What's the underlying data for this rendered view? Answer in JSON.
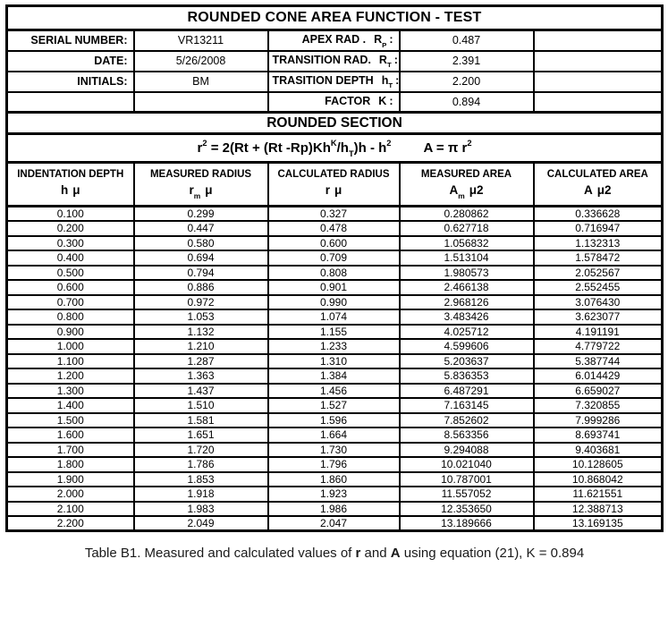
{
  "title": "ROUNDED CONE AREA FUNCTION - TEST",
  "info_left": [
    {
      "label": "SERIAL NUMBER:",
      "value": "VR13211"
    },
    {
      "label": "DATE:",
      "value": "5/26/2008"
    },
    {
      "label": "INITIALS:",
      "value": "BM"
    },
    {
      "label": "",
      "value": ""
    }
  ],
  "info_right": [
    {
      "label_main": "APEX RAD .",
      "symbol": "R",
      "symbol_sub": "P",
      "colon": ":",
      "value": "0.487"
    },
    {
      "label_main": "TRANSITION RAD.",
      "symbol": "R",
      "symbol_sub": "T",
      "colon": ":",
      "value": "2.391"
    },
    {
      "label_main": "TRASITION DEPTH",
      "symbol": "h",
      "symbol_sub": "T",
      "colon": ":",
      "value": "2.200"
    },
    {
      "label_main": "FACTOR",
      "symbol": "K",
      "symbol_sub": "",
      "colon": ":",
      "value": "0.894"
    }
  ],
  "section_title": "ROUNDED SECTION",
  "formula": {
    "r": "r",
    "r_sup": "2",
    "mid": " = 2(Rt + (Rt -Rp)Kh",
    "k_sup": "K",
    "over_h": "/h",
    "t_sub": "T",
    "tail": ")h - h",
    "h_sup": "2",
    "area": "A = π r",
    "area_sup": "2"
  },
  "columns": [
    {
      "line1": "INDENTATION DEPTH",
      "sym": "h",
      "sub": "",
      "unit": "μ"
    },
    {
      "line1": "MEASURED RADIUS",
      "sym": "r",
      "sub": "m",
      "unit": "μ"
    },
    {
      "line1": "CALCULATED RADIUS",
      "sym": "r",
      "sub": "",
      "unit": "μ"
    },
    {
      "line1": "MEASURED AREA",
      "sym": "A",
      "sub": "m",
      "unit": "μ2"
    },
    {
      "line1": "CALCULATED AREA",
      "sym": "A",
      "sub": "",
      "unit": "μ2"
    }
  ],
  "chart_data": {
    "type": "table",
    "title": "ROUNDED CONE AREA FUNCTION - TEST",
    "columns": [
      "INDENTATION DEPTH h μ",
      "MEASURED RADIUS rm μ",
      "CALCULATED RADIUS r μ",
      "MEASURED AREA Am μ2",
      "CALCULATED AREA A μ2"
    ],
    "rows": [
      [
        "0.100",
        "0.299",
        "0.327",
        "0.280862",
        "0.336628"
      ],
      [
        "0.200",
        "0.447",
        "0.478",
        "0.627718",
        "0.716947"
      ],
      [
        "0.300",
        "0.580",
        "0.600",
        "1.056832",
        "1.132313"
      ],
      [
        "0.400",
        "0.694",
        "0.709",
        "1.513104",
        "1.578472"
      ],
      [
        "0.500",
        "0.794",
        "0.808",
        "1.980573",
        "2.052567"
      ],
      [
        "0.600",
        "0.886",
        "0.901",
        "2.466138",
        "2.552455"
      ],
      [
        "0.700",
        "0.972",
        "0.990",
        "2.968126",
        "3.076430"
      ],
      [
        "0.800",
        "1.053",
        "1.074",
        "3.483426",
        "3.623077"
      ],
      [
        "0.900",
        "1.132",
        "1.155",
        "4.025712",
        "4.191191"
      ],
      [
        "1.000",
        "1.210",
        "1.233",
        "4.599606",
        "4.779722"
      ],
      [
        "1.100",
        "1.287",
        "1.310",
        "5.203637",
        "5.387744"
      ],
      [
        "1.200",
        "1.363",
        "1.384",
        "5.836353",
        "6.014429"
      ],
      [
        "1.300",
        "1.437",
        "1.456",
        "6.487291",
        "6.659027"
      ],
      [
        "1.400",
        "1.510",
        "1.527",
        "7.163145",
        "7.320855"
      ],
      [
        "1.500",
        "1.581",
        "1.596",
        "7.852602",
        "7.999286"
      ],
      [
        "1.600",
        "1.651",
        "1.664",
        "8.563356",
        "8.693741"
      ],
      [
        "1.700",
        "1.720",
        "1.730",
        "9.294088",
        "9.403681"
      ],
      [
        "1.800",
        "1.786",
        "1.796",
        "10.021040",
        "10.128605"
      ],
      [
        "1.900",
        "1.853",
        "1.860",
        "10.787001",
        "10.868042"
      ],
      [
        "2.000",
        "1.918",
        "1.923",
        "11.557052",
        "11.621551"
      ],
      [
        "2.100",
        "1.983",
        "1.986",
        "12.353650",
        "12.388713"
      ],
      [
        "2.200",
        "2.049",
        "2.047",
        "13.189666",
        "13.169135"
      ]
    ]
  },
  "caption": {
    "part1": "Table B1. Measured and calculated values of ",
    "bold1": "r",
    "part2": " and ",
    "bold2": "A",
    "part3": " using equation (21), K = 0.894"
  }
}
